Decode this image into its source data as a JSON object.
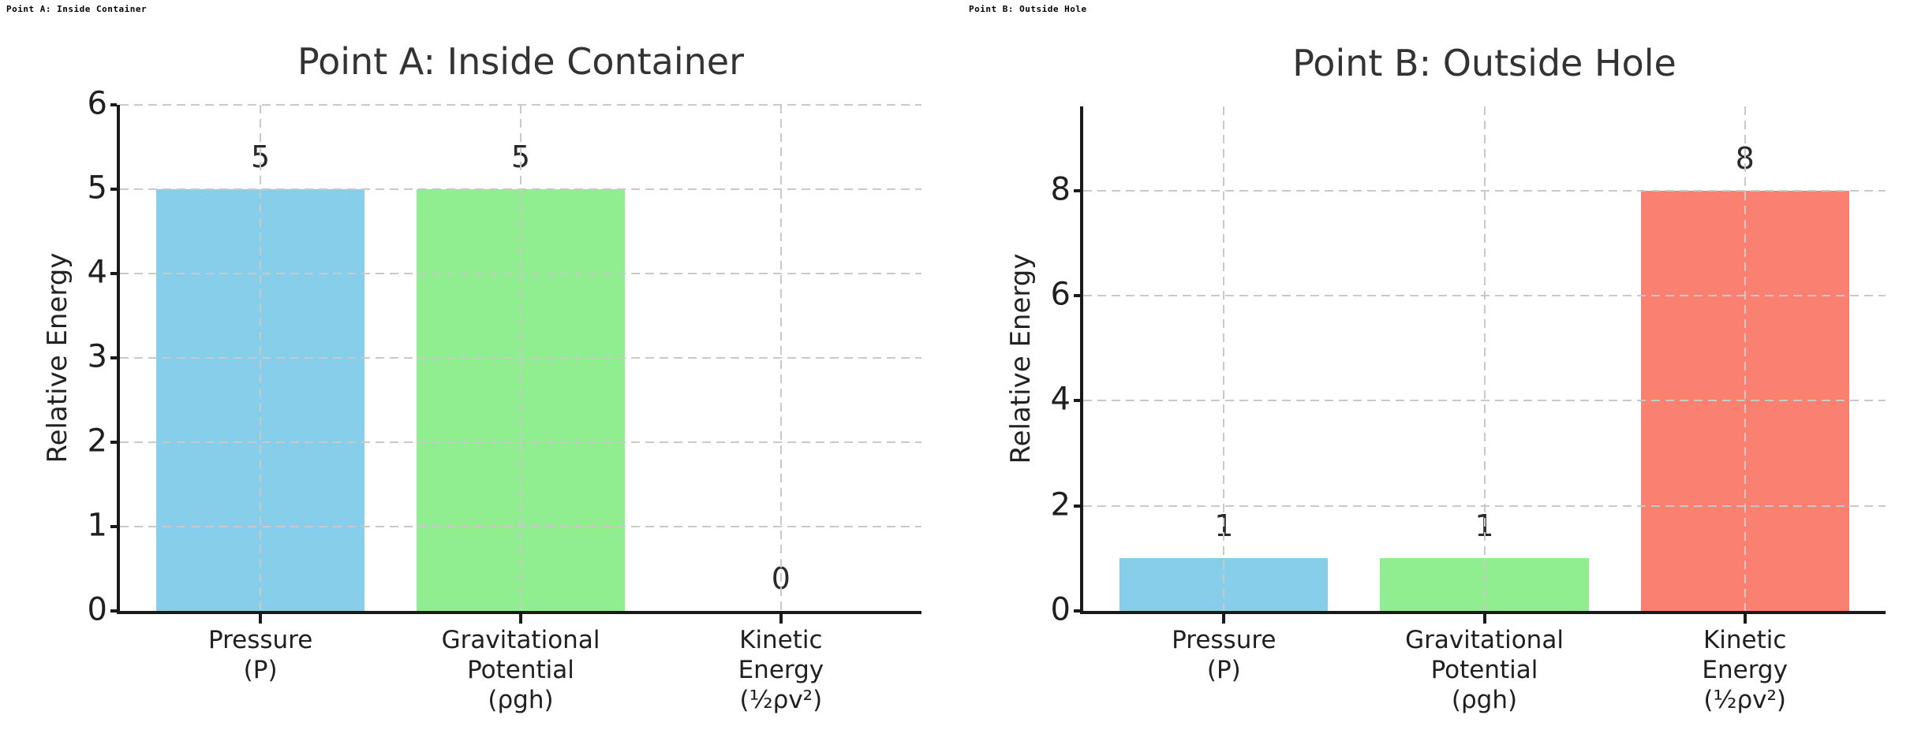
{
  "figure_labels": {
    "left": "Point A: Inside Container",
    "right": "Point B: Outside Hole"
  },
  "chart_data": [
    {
      "type": "bar",
      "title": "Point A: Inside Container",
      "xlabel": "",
      "ylabel": "Relative Energy",
      "categories": [
        "Pressure\n(P)",
        "Gravitational\nPotential\n(ρgh)",
        "Kinetic\nEnergy\n(½ρv²)"
      ],
      "values": [
        5,
        5,
        0
      ],
      "bar_labels": [
        "5",
        "5",
        "0"
      ],
      "bar_colors": [
        "#87CEEB",
        "#90EE90",
        "#FA8072"
      ],
      "yticks": [
        0,
        1,
        2,
        3,
        4,
        5,
        6
      ],
      "ylim": [
        0,
        6
      ],
      "grid": "dashed horizontal and vertical, drawn above bars",
      "legend": "none"
    },
    {
      "type": "bar",
      "title": "Point B: Outside Hole",
      "xlabel": "",
      "ylabel": "Relative Energy",
      "categories": [
        "Pressure\n(P)",
        "Gravitational\nPotential\n(ρgh)",
        "Kinetic\nEnergy\n(½ρv²)"
      ],
      "values": [
        1,
        1,
        8
      ],
      "bar_labels": [
        "1",
        "1",
        "8"
      ],
      "bar_colors": [
        "#87CEEB",
        "#90EE90",
        "#FA8072"
      ],
      "yticks": [
        0,
        2,
        4,
        6,
        8
      ],
      "ylim": [
        0,
        9.6
      ],
      "grid": "dashed horizontal and vertical, drawn above bars",
      "legend": "none"
    }
  ],
  "style": {
    "background": "#ffffff",
    "bar_blue": "#87CEEB",
    "bar_green": "#90EE90",
    "bar_salmon": "#FA8072",
    "grid_color": "#c9c9c9",
    "spine_color": "#1a1a1a",
    "title_color": "#333333",
    "tick_label_color": "#1f1f1f"
  }
}
